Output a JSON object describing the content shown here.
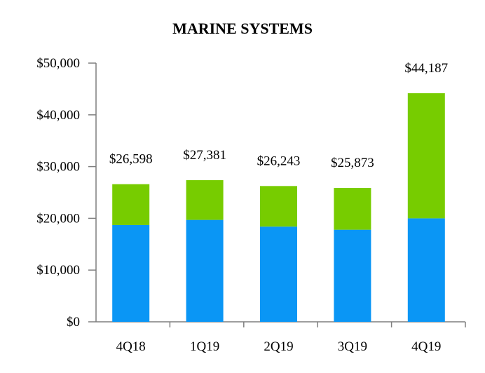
{
  "chart_data": {
    "type": "bar",
    "stacked": true,
    "title": "MARINE SYSTEMS",
    "xlabel": "",
    "ylabel": "",
    "categories": [
      "4Q18",
      "1Q19",
      "2Q19",
      "3Q19",
      "4Q19"
    ],
    "series": [
      {
        "color": "#0a96f5",
        "values": [
          18700,
          19700,
          18400,
          17800,
          20000
        ]
      },
      {
        "color": "#77cc00",
        "values": [
          7898,
          7681,
          7843,
          8073,
          24187
        ]
      }
    ],
    "totals": [
      26598,
      27381,
      26243,
      25873,
      44187
    ],
    "total_labels": [
      "$26,598",
      "$27,381",
      "$26,243",
      "$25,873",
      "$44,187"
    ],
    "ylim": [
      0,
      50000
    ],
    "yticks": [
      0,
      10000,
      20000,
      30000,
      40000,
      50000
    ],
    "ytick_labels": [
      "$0",
      "$10,000",
      "$20,000",
      "$30,000",
      "$40,000",
      "$50,000"
    ],
    "grid": false,
    "legend": "none"
  }
}
